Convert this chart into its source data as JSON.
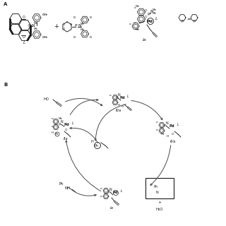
{
  "bg_color": "#ffffff",
  "fig_width": 3.2,
  "fig_height": 3.2,
  "dpi": 100,
  "text_color": "#1a1a1a",
  "arrow_color": "#555555",
  "structure_color": "#1a1a1a",
  "panel_A": "A",
  "panel_B": "B",
  "label_L": "L",
  "label_Ia": "Ia",
  "label_IIa": "IIa",
  "label_IIIa": "IIIa",
  "label_IVa": "IVa",
  "label_HO": "HO",
  "label_H2O": "H₂O",
  "label_plus": "+",
  "label_Ph": "Ph",
  "label_NH": "NH"
}
